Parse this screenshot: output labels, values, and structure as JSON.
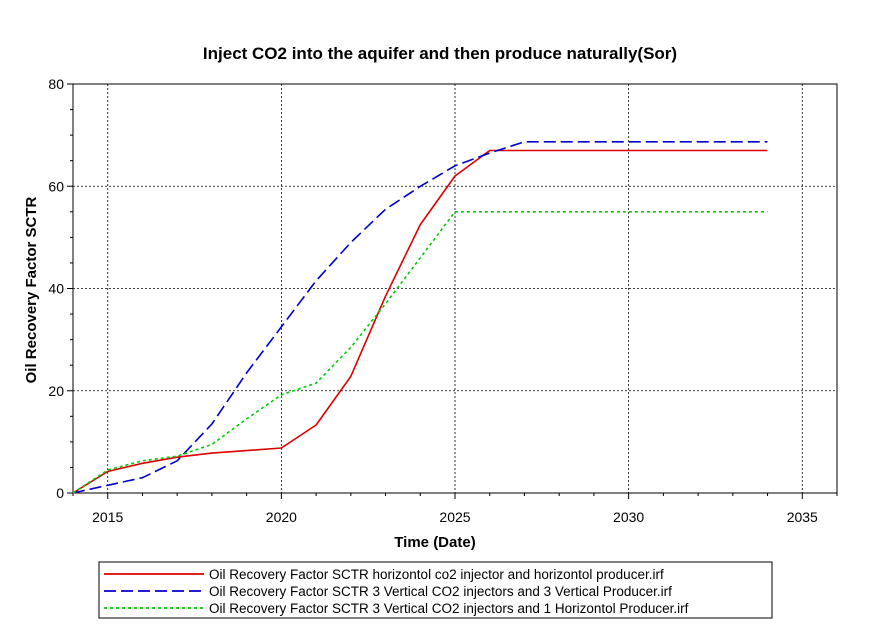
{
  "chart_data": {
    "type": "line",
    "title": "Inject CO2 into the aquifer and then produce naturally(Sor)",
    "xlabel": "Time (Date)",
    "ylabel": "Oil Recovery Factor SCTR",
    "xlim": [
      2014,
      2036
    ],
    "ylim": [
      0,
      80
    ],
    "xticks": [
      2015,
      2020,
      2025,
      2030,
      2035
    ],
    "yticks": [
      0,
      20,
      40,
      60,
      80
    ],
    "grid": true,
    "legend_position": "bottom",
    "series": [
      {
        "name": "Oil Recovery Factor SCTR horizontol co2 injector and horizontol producer.irf",
        "color": "#dd0000",
        "dash": "solid",
        "x": [
          2014,
          2015,
          2016,
          2017,
          2018,
          2019,
          2020,
          2021,
          2022,
          2023,
          2024,
          2025,
          2026,
          2027,
          2028,
          2030,
          2032,
          2034
        ],
        "y": [
          0,
          4.2,
          5.8,
          7.0,
          7.8,
          8.3,
          8.8,
          13.3,
          22.8,
          38.5,
          52.5,
          62.0,
          67.0,
          67.0,
          67.0,
          67.0,
          67.0,
          67.0
        ]
      },
      {
        "name": "Oil Recovery Factor SCTR 3 Vertical CO2 injectors and 3 Vertical Producer.irf",
        "color": "#0000cc",
        "dash": "dashed",
        "x": [
          2014,
          2015,
          2016,
          2017,
          2018,
          2019,
          2020,
          2021,
          2022,
          2023,
          2024,
          2025,
          2026,
          2027,
          2028,
          2030,
          2032,
          2034
        ],
        "y": [
          0,
          1.5,
          3.0,
          6.3,
          13.5,
          23.5,
          32.5,
          41.5,
          49.0,
          55.5,
          60.0,
          64.0,
          66.5,
          68.7,
          68.7,
          68.7,
          68.7,
          68.7
        ]
      },
      {
        "name": "Oil Recovery Factor SCTR 3 Vertical CO2 injectors and 1 Horizontol Producer.irf",
        "color": "#00cc00",
        "dash": "dotted",
        "x": [
          2014,
          2015,
          2016,
          2017,
          2018,
          2019,
          2020,
          2021,
          2022,
          2023,
          2024,
          2025,
          2026,
          2028,
          2030,
          2032,
          2034
        ],
        "y": [
          0,
          4.5,
          6.3,
          7.2,
          9.5,
          14.5,
          19.2,
          21.5,
          28.5,
          37.0,
          46.0,
          55.0,
          55.0,
          55.0,
          55.0,
          55.0,
          55.0
        ]
      }
    ]
  }
}
